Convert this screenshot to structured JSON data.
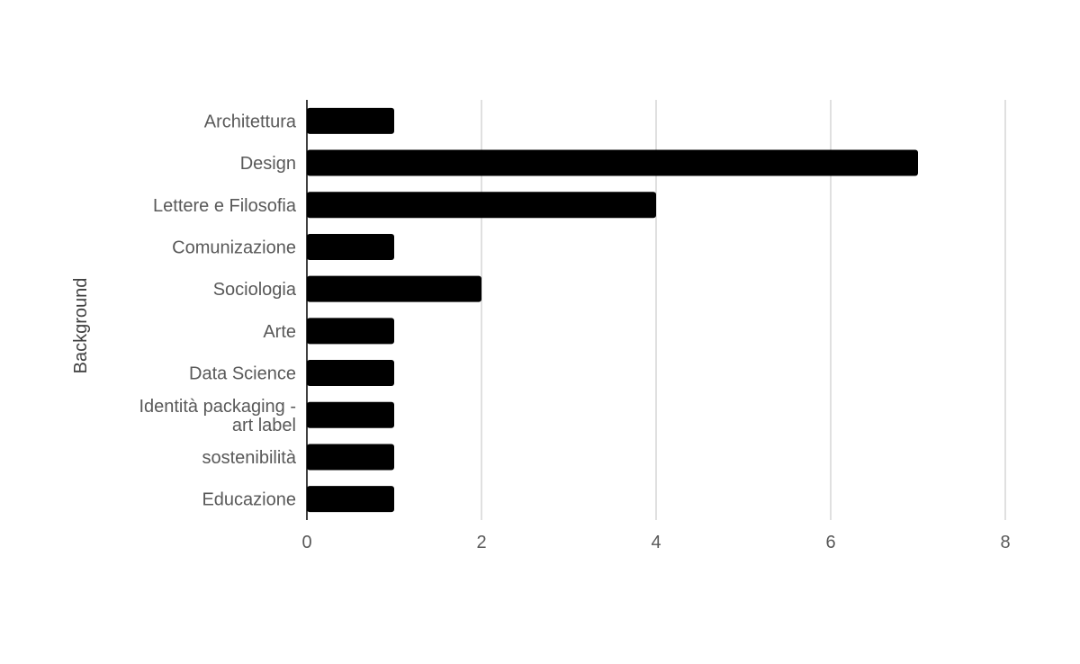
{
  "chart_data": {
    "type": "bar",
    "orientation": "horizontal",
    "ylabel": "Background",
    "xlabel": "",
    "categories": [
      "Architettura",
      "Design",
      "Lettere e Filosofia",
      "Comunizazione",
      "Sociologia",
      "Arte",
      "Data Science",
      "Identità packaging - art label",
      "sostenibilità",
      "Educazione"
    ],
    "category_lines": [
      [
        "Architettura"
      ],
      [
        "Design"
      ],
      [
        "Lettere e Filosofia"
      ],
      [
        "Comunizazione"
      ],
      [
        "Sociologia"
      ],
      [
        "Arte"
      ],
      [
        "Data Science"
      ],
      [
        "Identità packaging -",
        "art label"
      ],
      [
        "sostenibilità"
      ],
      [
        "Educazione"
      ]
    ],
    "values": [
      1,
      7,
      4,
      1,
      2,
      1,
      1,
      1,
      1,
      1
    ],
    "xlim": [
      0,
      8
    ],
    "xticks": [
      "0",
      "2",
      "4",
      "6",
      "8"
    ],
    "grid": true,
    "legend": "none",
    "colors": {
      "bar": "#000000",
      "grid": "#cccccc",
      "axis": "#000000"
    }
  }
}
